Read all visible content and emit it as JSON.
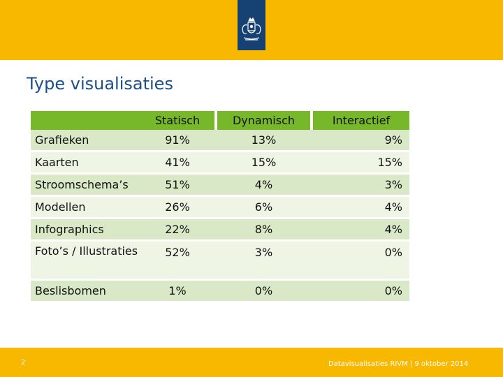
{
  "header": {
    "logo_icon": "coat-of-arms-icon",
    "bar_color": "#f9b800",
    "logo_bg_color": "#154273"
  },
  "slide": {
    "title": "Type visualisaties"
  },
  "table": {
    "columns": [
      "Statisch",
      "Dynamisch",
      "Interactief"
    ],
    "rows": [
      {
        "label": "Grafieken",
        "values": [
          "91%",
          "13%",
          "9%"
        ]
      },
      {
        "label": "Kaarten",
        "values": [
          "41%",
          "15%",
          "15%"
        ]
      },
      {
        "label": "Stroomschema’s",
        "values": [
          "51%",
          "4%",
          "3%"
        ]
      },
      {
        "label": "Modellen",
        "values": [
          "26%",
          "6%",
          "4%"
        ]
      },
      {
        "label": "Infographics",
        "values": [
          "22%",
          "8%",
          "4%"
        ]
      },
      {
        "label": "Foto’s / Illustraties",
        "values": [
          "52%",
          "3%",
          "0%"
        ]
      },
      {
        "label": "Beslisbomen",
        "values": [
          "1%",
          "0%",
          "0%"
        ]
      }
    ],
    "header_color": "#76b82a"
  },
  "footer": {
    "page_number": "2",
    "text": "Datavisualisaties RIVM | 9 oktober 2014"
  }
}
